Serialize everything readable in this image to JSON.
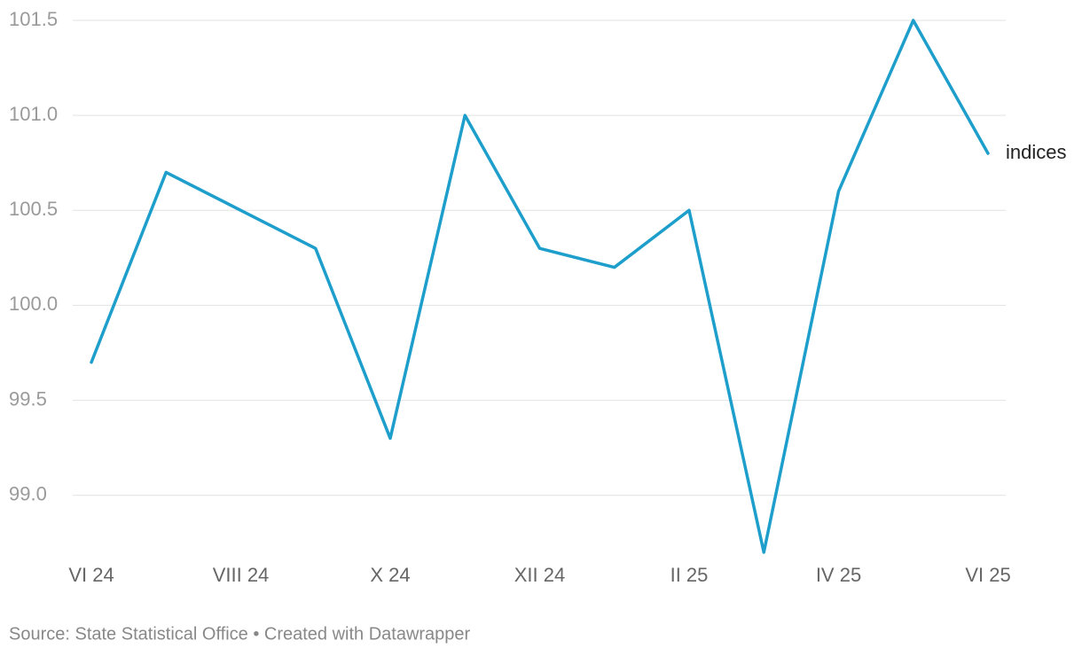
{
  "chart_data": {
    "type": "line",
    "categories": [
      "VI 24",
      null,
      "VIII 24",
      null,
      "X 24",
      null,
      "XII 24",
      null,
      "II 25",
      null,
      "IV 25",
      null,
      "VI 25"
    ],
    "series": [
      {
        "name": "indices",
        "color": "#1d9ecb",
        "values": [
          99.7,
          100.7,
          100.5,
          100.3,
          99.3,
          101.0,
          100.3,
          100.2,
          100.5,
          98.7,
          100.6,
          101.5,
          100.8
        ]
      }
    ],
    "ylim": [
      98.7,
      101.5
    ],
    "yticks": [
      {
        "value": 99,
        "label": "99.0"
      },
      99.5,
      {
        "value": 100,
        "label": "100.0"
      },
      100.5,
      {
        "value": 101,
        "label": "101.0"
      },
      101.5
    ],
    "grid": true,
    "source": "Source: State Statistical Office • Created with Datawrapper"
  }
}
